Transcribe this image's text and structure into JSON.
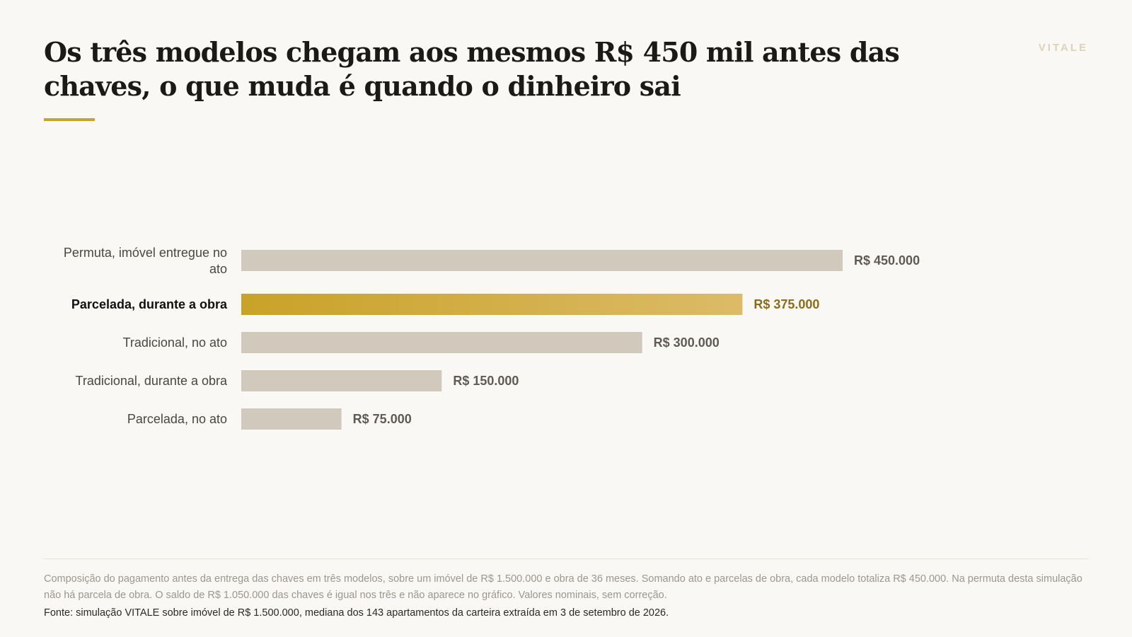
{
  "brand": "VITALE",
  "title": "Os três modelos chegam aos mesmos R$ 450 mil antes das chaves, o que muda é quando o dinheiro sai",
  "footer": {
    "note": "Composição do pagamento antes da entrega das chaves em três modelos, sobre um imóvel de R$ 1.500.000 e obra de 36 meses. Somando ato e parcelas de obra, cada modelo totaliza R$ 450.000. Na permuta desta simulação não há parcela de obra. O saldo de R$ 1.050.000 das chaves é igual nos três e não aparece no gráfico. Valores nominais, sem correção.",
    "source": "Fonte: simulação VITALE sobre imóvel de R$ 1.500.000, mediana dos 143 apartamentos da carteira extraída em 3 de setembro de 2026."
  },
  "colors": {
    "bar_default": "#d1c9bc",
    "bar_highlight_start": "#c9a227",
    "bar_highlight_end": "#dcbb68",
    "label_highlight": "#8a6d1c",
    "value_default": "#5f5b54",
    "accent": "#c9a227"
  },
  "chart_data": {
    "type": "bar",
    "orientation": "horizontal",
    "categories": [
      "Permuta, imóvel entregue no ato",
      "Parcelada, durante a obra",
      "Tradicional, no ato",
      "Tradicional, durante a obra",
      "Parcelada, no ato"
    ],
    "values": [
      450000,
      375000,
      300000,
      150000,
      75000
    ],
    "value_labels": [
      "R$ 450.000",
      "R$ 375.000",
      "R$ 300.000",
      "R$ 150.000",
      "R$ 75.000"
    ],
    "highlight_index": 1,
    "xlim": [
      0,
      450000
    ],
    "grid": false,
    "legend": "none",
    "title": "",
    "xlabel": "",
    "ylabel": ""
  }
}
